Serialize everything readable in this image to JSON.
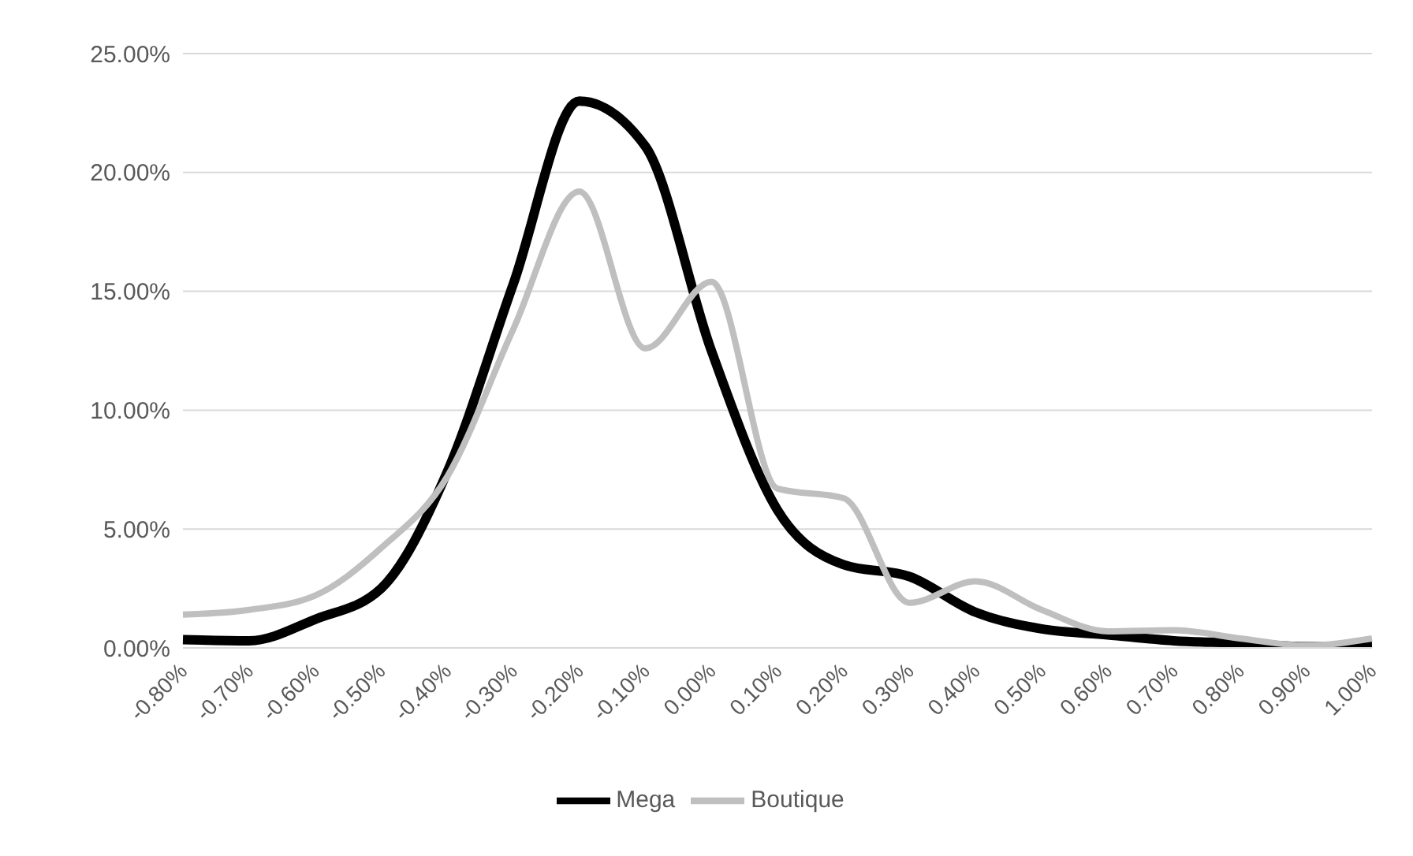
{
  "chart_data": {
    "type": "line",
    "categories": [
      "-0.80%",
      "-0.70%",
      "-0.60%",
      "-0.50%",
      "-0.40%",
      "-0.30%",
      "-0.20%",
      "-0.10%",
      "0.00%",
      "0.10%",
      "0.20%",
      "0.30%",
      "0.40%",
      "0.50%",
      "0.60%",
      "0.70%",
      "0.80%",
      "0.90%",
      "1.00%"
    ],
    "series": [
      {
        "name": "Mega",
        "color": "#000000",
        "values": [
          0.35,
          0.3,
          1.2,
          2.5,
          7.4,
          15.3,
          23.0,
          21.1,
          12.5,
          5.8,
          3.5,
          3.0,
          1.5,
          0.8,
          0.55,
          0.3,
          0.2,
          0.05,
          0.1
        ]
      },
      {
        "name": "Boutique",
        "color": "#bfbfbf",
        "values": [
          1.4,
          1.6,
          2.2,
          4.2,
          7.2,
          13.4,
          19.2,
          12.6,
          15.4,
          6.7,
          6.3,
          1.9,
          2.8,
          1.6,
          0.7,
          0.75,
          0.4,
          0.1,
          0.4
        ]
      }
    ],
    "ylim": [
      0,
      25
    ],
    "yticks": [
      {
        "value": 0,
        "label": "0.00%"
      },
      {
        "value": 5,
        "label": "5.00%"
      },
      {
        "value": 10,
        "label": "10.00%"
      },
      {
        "value": 15,
        "label": "15.00%"
      },
      {
        "value": 20,
        "label": "20.00%"
      },
      {
        "value": 25,
        "label": "25.00%"
      }
    ],
    "grid": "y",
    "legend": "bottom",
    "marker": "none",
    "line_style": "solid"
  }
}
